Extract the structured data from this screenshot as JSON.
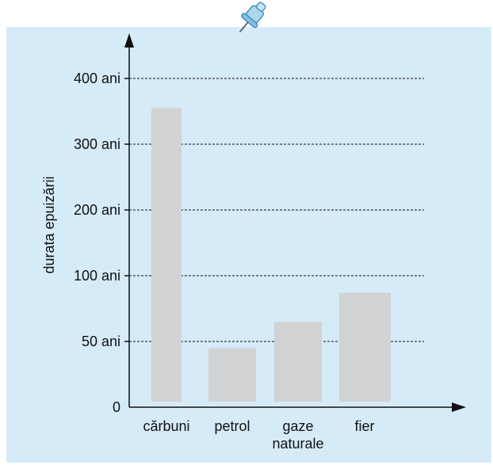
{
  "chart_data": {
    "type": "bar",
    "ylabel": "durata epuizării",
    "xlabel": "",
    "categories": [
      [
        "cărbuni"
      ],
      [
        "petrol"
      ],
      [
        "gaze",
        "naturale"
      ],
      [
        "fier"
      ]
    ],
    "values": [
      355,
      45,
      65,
      87
    ],
    "yticks": [
      {
        "value": 0,
        "label": "0"
      },
      {
        "value": 50,
        "label": "50 ani"
      },
      {
        "value": 100,
        "label": "100 ani"
      },
      {
        "value": 200,
        "label": "200 ani"
      },
      {
        "value": 300,
        "label": "300 ani"
      },
      {
        "value": 400,
        "label": "400 ani"
      }
    ],
    "grid": "dashed horizontal",
    "colors": {
      "panel": "#d6ebf8",
      "bar": "#d1d2d4",
      "axis": "#111111",
      "pin": "#7fc0e4"
    }
  }
}
